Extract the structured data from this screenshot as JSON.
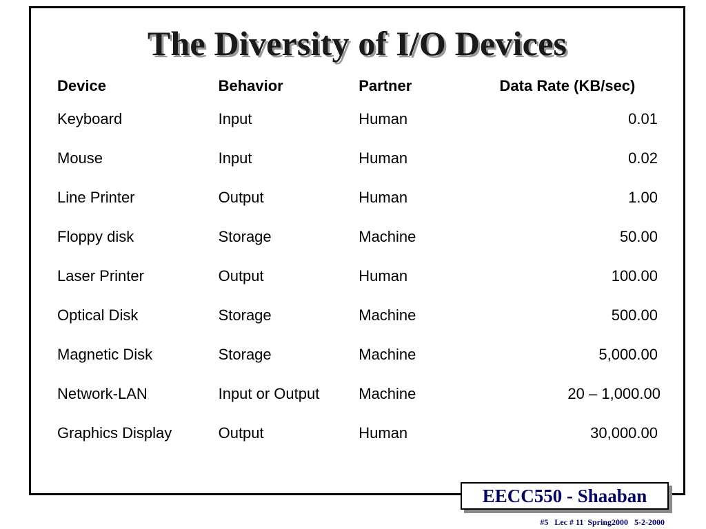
{
  "slide": {
    "title": "The Diversity of I/O Devices"
  },
  "table": {
    "headers": {
      "device": "Device",
      "behavior": "Behavior",
      "partner": "Partner",
      "data_rate": "Data Rate (KB/sec)"
    },
    "rows": [
      {
        "device": "Keyboard",
        "behavior": "Input",
        "partner": "Human",
        "data_rate": "0.01"
      },
      {
        "device": "Mouse",
        "behavior": "Input",
        "partner": "Human",
        "data_rate": "0.02"
      },
      {
        "device": "Line Printer",
        "behavior": "Output",
        "partner": "Human",
        "data_rate": "1.00"
      },
      {
        "device": "Floppy disk",
        "behavior": "Storage",
        "partner": "Machine",
        "data_rate": "50.00"
      },
      {
        "device": "Laser Printer",
        "behavior": "Output",
        "partner": "Human",
        "data_rate": "100.00"
      },
      {
        "device": "Optical Disk",
        "behavior": "Storage",
        "partner": "Machine",
        "data_rate": "500.00"
      },
      {
        "device": "Magnetic Disk",
        "behavior": "Storage",
        "partner": "Machine",
        "data_rate": "5,000.00"
      },
      {
        "device": "Network-LAN",
        "behavior": "Input or Output",
        "partner": "Machine",
        "data_rate": "20 – 1,000.00"
      },
      {
        "device": "Graphics Display",
        "behavior": "Output",
        "partner": "Human",
        "data_rate": "30,000.00"
      }
    ]
  },
  "footer": {
    "course": "EECC550 - Shaaban",
    "note": "#5   Lec # 11  Spring2000   5-2-2000"
  },
  "colors": {
    "title_shadow": "#9a9a9a",
    "course_text": "#000066",
    "box_shadow": "#8a8a8a"
  }
}
